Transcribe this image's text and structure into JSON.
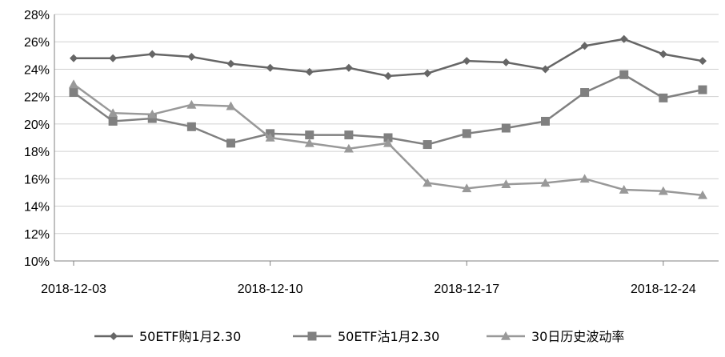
{
  "chart_data": {
    "type": "line",
    "title": "",
    "xlabel": "",
    "ylabel": "",
    "ylim": [
      0.1,
      0.28
    ],
    "yticks": [
      0.1,
      0.12,
      0.14,
      0.16,
      0.18,
      0.2,
      0.22,
      0.24,
      0.26,
      0.28
    ],
    "ytick_labels": [
      "10%",
      "12%",
      "14%",
      "16%",
      "18%",
      "20%",
      "22%",
      "24%",
      "26%",
      "28%"
    ],
    "xtick_labels": [
      "2018-12-03",
      "2018-12-10",
      "2018-12-17",
      "2018-12-24"
    ],
    "x": [
      "2018-12-03",
      "2018-12-04",
      "2018-12-05",
      "2018-12-06",
      "2018-12-07",
      "2018-12-10",
      "2018-12-11",
      "2018-12-12",
      "2018-12-13",
      "2018-12-14",
      "2018-12-17",
      "2018-12-18",
      "2018-12-19",
      "2018-12-20",
      "2018-12-21",
      "2018-12-24",
      "2018-12-25"
    ],
    "grid": "horizontal",
    "legend_position": "bottom",
    "series": [
      {
        "name": "50ETF购1月2.30",
        "marker": "diamond",
        "color": "#666666",
        "values": [
          0.248,
          0.248,
          0.251,
          0.249,
          0.244,
          0.241,
          0.238,
          0.241,
          0.235,
          0.237,
          0.246,
          0.245,
          0.24,
          0.257,
          0.262,
          0.251,
          0.246
        ]
      },
      {
        "name": "50ETF沽1月2.30",
        "marker": "square",
        "color": "#808080",
        "values": [
          0.223,
          0.202,
          0.204,
          0.198,
          0.186,
          0.193,
          0.192,
          0.192,
          0.19,
          0.185,
          0.193,
          0.197,
          0.202,
          0.223,
          0.236,
          0.219,
          0.225
        ]
      },
      {
        "name": "30日历史波动率",
        "marker": "triangle",
        "color": "#999999",
        "values": [
          0.229,
          0.208,
          0.207,
          0.214,
          0.213,
          0.19,
          0.186,
          0.182,
          0.186,
          0.157,
          0.153,
          0.156,
          0.157,
          0.16,
          0.152,
          0.151,
          0.148
        ]
      }
    ]
  }
}
